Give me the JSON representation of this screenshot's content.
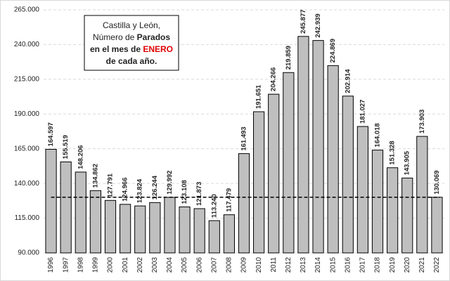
{
  "chart_data": {
    "type": "bar",
    "title_lines": [
      [
        "Castilla y León,"
      ],
      [
        "Número de ",
        "Parados"
      ],
      [
        "en el mes de ",
        "ENERO"
      ],
      [
        "de cada año."
      ]
    ],
    "categories": [
      "1996",
      "1997",
      "1998",
      "1999",
      "2000",
      "2001",
      "2002",
      "2003",
      "2004",
      "2005",
      "2006",
      "2007",
      "2008",
      "2009",
      "2010",
      "2011",
      "2012",
      "2013",
      "2014",
      "2015",
      "2016",
      "2017",
      "2018",
      "2019",
      "2020",
      "2021",
      "2022"
    ],
    "values": [
      164597,
      155519,
      148206,
      134862,
      127791,
      124966,
      123824,
      126244,
      129992,
      123108,
      121873,
      113240,
      117479,
      161493,
      191651,
      204266,
      219859,
      245877,
      242939,
      224869,
      202914,
      181027,
      164018,
      151328,
      143905,
      173903,
      130069
    ],
    "value_labels": [
      "164.597",
      "155.519",
      "148.206",
      "134.862",
      "127.791",
      "124.966",
      "123.824",
      "126.244",
      "129.992",
      "123.108",
      "121.873",
      "113.240",
      "117.479",
      "161.493",
      "191.651",
      "204.266",
      "219.859",
      "245.877",
      "242.939",
      "224.869",
      "202.914",
      "181.027",
      "164.018",
      "151.328",
      "143.905",
      "173.903",
      "130.069"
    ],
    "color": "#bfbfbf",
    "reference_line": 130069,
    "ylim": [
      90000,
      265000
    ],
    "yticks": [
      {
        "value": 90000,
        "label": "90.000"
      },
      {
        "value": 115000,
        "label": "115.000"
      },
      {
        "value": 140000,
        "label": "140.000"
      },
      {
        "value": 165000,
        "label": "165.000"
      },
      {
        "value": 190000,
        "label": "190.000"
      },
      {
        "value": 215000,
        "label": "215.000"
      },
      {
        "value": 240000,
        "label": "240.000"
      },
      {
        "value": 265000,
        "label": "265.000"
      }
    ],
    "grid": true
  }
}
